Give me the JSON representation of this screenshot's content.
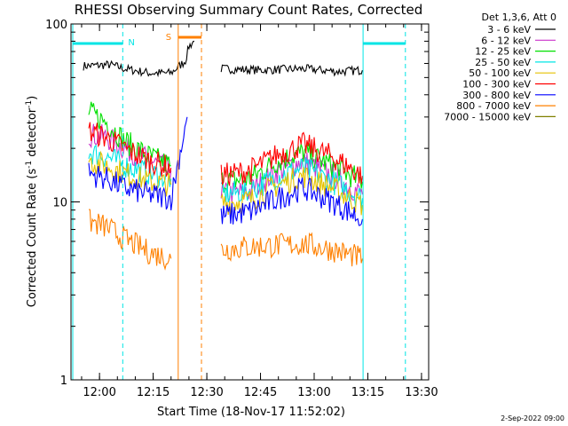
{
  "chart_data": {
    "type": "line",
    "title": "RHESSI Observing Summary Count Rates, Corrected",
    "xlabel": "Start Time (18-Nov-17 11:52:02)",
    "ylabel_main": "Corrected Count Rate (s",
    "ylabel_sup1": "-1",
    "ylabel_mid": " detector",
    "ylabel_sup2": "-1",
    "ylabel_end": ")",
    "y_scale": "log",
    "ylim": [
      1,
      100
    ],
    "xlim": [
      "11:52:02",
      "13:32:00"
    ],
    "x_ticks": [
      "12:00",
      "12:15",
      "12:30",
      "12:45",
      "13:00",
      "13:15",
      "13:30"
    ],
    "y_ticks": [
      "1",
      "10",
      "100"
    ],
    "legend_header": "Det 1,3,6, Att 0",
    "legend_position": "top-right",
    "series": [
      {
        "name": "3 - 6 keV",
        "color": "#000000",
        "values": [
          [
            "11:55:30",
            58
          ],
          [
            "12:03:00",
            59
          ],
          [
            "12:07:00",
            56
          ],
          [
            "12:14:00",
            53
          ],
          [
            "12:20:00",
            53
          ],
          [
            "12:24:00",
            62
          ],
          [
            "12:25:00",
            75
          ],
          [
            "12:26:30",
            80
          ],
          [
            "12:34:00",
            56
          ],
          [
            "12:45:00",
            55
          ],
          [
            "12:57:00",
            56
          ],
          [
            "13:07:00",
            54
          ],
          [
            "13:13:30",
            55
          ]
        ]
      },
      {
        "name": "6 - 12 keV",
        "color": "#cc33cc",
        "values": [
          [
            "11:57:00",
            24
          ],
          [
            "12:02:00",
            23
          ],
          [
            "12:07:00",
            20
          ],
          [
            "12:14:00",
            17
          ],
          [
            "12:20:00",
            15
          ],
          [
            "12:34:00",
            11
          ],
          [
            "12:42:00",
            11.5
          ],
          [
            "12:50:00",
            15
          ],
          [
            "12:57:00",
            17
          ],
          [
            "13:05:00",
            14
          ],
          [
            "13:13:30",
            11
          ]
        ]
      },
      {
        "name": "12 - 25 keV",
        "color": "#00e000",
        "values": [
          [
            "11:57:00",
            32
          ],
          [
            "12:02:00",
            28
          ],
          [
            "12:07:00",
            22
          ],
          [
            "12:14:00",
            18
          ],
          [
            "12:20:00",
            16
          ],
          [
            "12:34:00",
            13
          ],
          [
            "12:42:00",
            13.5
          ],
          [
            "12:50:00",
            17
          ],
          [
            "12:57:00",
            19
          ],
          [
            "13:05:00",
            16
          ],
          [
            "13:13:30",
            13
          ]
        ]
      },
      {
        "name": "25 - 50 keV",
        "color": "#00e5e5",
        "values": [
          [
            "11:57:00",
            19
          ],
          [
            "12:02:00",
            18
          ],
          [
            "12:07:00",
            16
          ],
          [
            "12:14:00",
            14.5
          ],
          [
            "12:20:00",
            13.5
          ],
          [
            "12:34:00",
            11
          ],
          [
            "12:42:00",
            11.5
          ],
          [
            "12:50:00",
            14
          ],
          [
            "12:57:00",
            15.5
          ],
          [
            "13:05:00",
            13
          ],
          [
            "13:13:30",
            10.5
          ]
        ]
      },
      {
        "name": "50 - 100 keV",
        "color": "#e6c200",
        "values": [
          [
            "11:57:00",
            17
          ],
          [
            "12:02:00",
            16
          ],
          [
            "12:07:00",
            14.5
          ],
          [
            "12:14:00",
            13
          ],
          [
            "12:20:00",
            12.5
          ],
          [
            "12:34:00",
            9.8
          ],
          [
            "12:42:00",
            10.2
          ],
          [
            "12:50:00",
            12.5
          ],
          [
            "12:57:00",
            14
          ],
          [
            "13:05:00",
            12
          ],
          [
            "13:13:30",
            9.6
          ]
        ]
      },
      {
        "name": "100 - 300 keV",
        "color": "#ff0000",
        "values": [
          [
            "11:57:00",
            25
          ],
          [
            "12:02:00",
            23
          ],
          [
            "12:07:00",
            20
          ],
          [
            "12:14:00",
            17
          ],
          [
            "12:20:00",
            15.5
          ],
          [
            "12:34:00",
            14
          ],
          [
            "12:42:00",
            15
          ],
          [
            "12:50:00",
            18.5
          ],
          [
            "12:57:00",
            21
          ],
          [
            "13:05:00",
            18
          ],
          [
            "13:13:30",
            14
          ]
        ]
      },
      {
        "name": "300 - 800 keV",
        "color": "#0000ff",
        "values": [
          [
            "11:57:00",
            14.5
          ],
          [
            "12:02:00",
            13.5
          ],
          [
            "12:07:00",
            12
          ],
          [
            "12:14:00",
            11
          ],
          [
            "12:20:00",
            10.5
          ],
          [
            "12:24:30",
            30
          ],
          [
            "12:34:00",
            8.3
          ],
          [
            "12:42:00",
            8.8
          ],
          [
            "12:50:00",
            10.5
          ],
          [
            "12:57:00",
            12
          ],
          [
            "13:05:00",
            10
          ],
          [
            "13:13:30",
            8
          ]
        ]
      },
      {
        "name": "800 - 7000 keV",
        "color": "#ff8000",
        "values": [
          [
            "11:57:00",
            7.8
          ],
          [
            "12:02:00",
            7.2
          ],
          [
            "12:07:00",
            6.2
          ],
          [
            "12:14:00",
            5.2
          ],
          [
            "12:20:00",
            4.8
          ],
          [
            "12:34:00",
            5.4
          ],
          [
            "12:42:00",
            5.6
          ],
          [
            "12:50:00",
            5.7
          ],
          [
            "12:57:00",
            5.8
          ],
          [
            "13:05:00",
            5.4
          ],
          [
            "13:13:30",
            4.8
          ]
        ]
      },
      {
        "name": "7000 - 15000 keV",
        "color": "#808000",
        "values": []
      }
    ],
    "markers": {
      "night_label": "N",
      "saa_label": "S",
      "night_start_1": "12:06:30",
      "night_end_1": "13:13:40",
      "night_end_2": "13:25:30",
      "saa_start": "12:22:00",
      "saa_end": "12:28:30"
    }
  },
  "footer": {
    "date_stamp": "2-Sep-2022 09:00"
  }
}
